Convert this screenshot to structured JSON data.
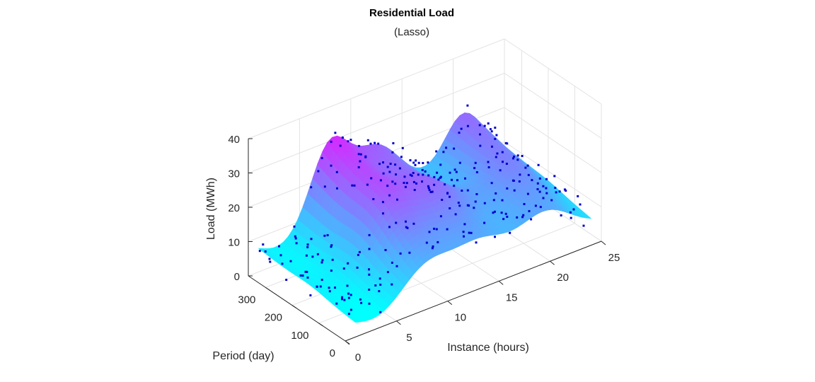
{
  "chart_data": {
    "type": "surface",
    "title": "Residential Load",
    "subtitle": "(Lasso)",
    "xlabel": "Instance (hours)",
    "ylabel": "Period (day)",
    "zlabel": "Load (MWh)",
    "x_ticks": [
      "0",
      "5",
      "10",
      "15",
      "20",
      "25"
    ],
    "y_ticks": [
      "0",
      "100",
      "200",
      "300"
    ],
    "z_ticks": [
      "0",
      "10",
      "20",
      "30",
      "40"
    ],
    "xlim": [
      0,
      25
    ],
    "ylim": [
      0,
      365
    ],
    "zlim": [
      0,
      40
    ],
    "grid": true,
    "surface_colormap": [
      "#00ffff",
      "#ff00ff"
    ],
    "marker_color": "#0000cc",
    "observations_marker": "small square dots",
    "note_peaks": [
      {
        "hour": 8,
        "day": 300,
        "load": 32
      },
      {
        "hour": 12,
        "day": 300,
        "load": 37
      },
      {
        "hour": 21,
        "day": 300,
        "load": 28
      },
      {
        "hour": 8,
        "day": 50,
        "load": 14
      },
      {
        "hour": 20,
        "day": 50,
        "load": 18
      }
    ]
  }
}
